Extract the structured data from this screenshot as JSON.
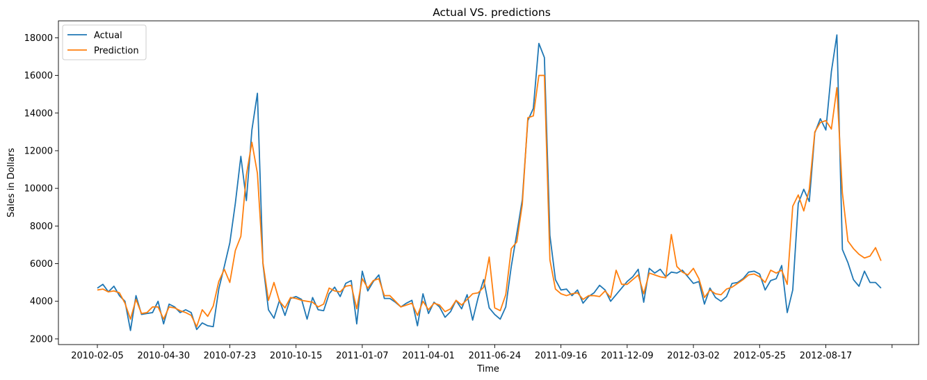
{
  "chart_data": {
    "type": "line",
    "title": "Actual VS. predictions",
    "xlabel": "Time",
    "ylabel": "Sales in Dollars",
    "ylim": [
      1700,
      18900
    ],
    "yticks": [
      2000,
      4000,
      6000,
      8000,
      10000,
      12000,
      14000,
      16000,
      18000
    ],
    "xtick_labels": [
      "2010-02-05",
      "2010-04-30",
      "2010-07-23",
      "2010-10-15",
      "2011-01-07",
      "2011-04-01",
      "2011-06-24",
      "2011-09-16",
      "2011-12-09",
      "2012-03-02",
      "2012-05-25",
      "2012-08-17",
      ""
    ],
    "grid": false,
    "legend": "top-left",
    "series": [
      {
        "name": "Actual",
        "color": "#1f77b4",
        "values": [
          4700,
          4900,
          4500,
          4800,
          4300,
          4000,
          2450,
          4300,
          3300,
          3350,
          3400,
          4000,
          2800,
          3850,
          3700,
          3400,
          3550,
          3400,
          2500,
          2850,
          2700,
          2650,
          4650,
          5850,
          7100,
          9200,
          11700,
          9350,
          13100,
          15050,
          6000,
          3550,
          3100,
          4050,
          3250,
          4150,
          4250,
          4100,
          3050,
          4200,
          3550,
          3500,
          4400,
          4750,
          4250,
          4950,
          5100,
          2800,
          5600,
          4550,
          5050,
          5400,
          4150,
          4150,
          3950,
          3700,
          3900,
          4050,
          2700,
          4400,
          3350,
          3950,
          3700,
          3150,
          3450,
          4050,
          3600,
          4350,
          3000,
          4200,
          5150,
          3650,
          3300,
          3050,
          3700,
          5850,
          7600,
          9400,
          13600,
          14250,
          17700,
          16950,
          7500,
          5150,
          4600,
          4650,
          4300,
          4600,
          3900,
          4250,
          4450,
          4850,
          4600,
          4000,
          4350,
          4700,
          5050,
          5300,
          5700,
          3950,
          5750,
          5500,
          5700,
          5300,
          5550,
          5500,
          5650,
          5300,
          4950,
          5050,
          3850,
          4700,
          4200,
          4000,
          4250,
          4950,
          5000,
          5200,
          5550,
          5600,
          5450,
          4600,
          5100,
          5200,
          5900,
          3400,
          4600,
          9200,
          9950,
          9300,
          12950,
          13700,
          13100,
          16200,
          18150,
          6750,
          6050,
          5150,
          4800,
          5600,
          5000,
          5000,
          4700
        ]
      },
      {
        "name": "Prediction",
        "color": "#ff7f0e",
        "values": [
          4600,
          4650,
          4500,
          4550,
          4450,
          3900,
          3050,
          4100,
          3350,
          3400,
          3700,
          3700,
          3050,
          3700,
          3650,
          3500,
          3400,
          3250,
          2650,
          3550,
          3200,
          3750,
          5050,
          5700,
          5000,
          6700,
          7450,
          10700,
          12450,
          10800,
          6050,
          4050,
          5000,
          4000,
          3650,
          4200,
          4150,
          4050,
          4000,
          3950,
          3700,
          3850,
          4700,
          4550,
          4500,
          4800,
          4850,
          3600,
          5200,
          4700,
          5100,
          5200,
          4300,
          4300,
          4000,
          3700,
          3800,
          3900,
          3250,
          4000,
          3550,
          3900,
          3800,
          3450,
          3600,
          4050,
          3800,
          4100,
          4400,
          4450,
          4750,
          6350,
          3650,
          3500,
          4350,
          6800,
          7150,
          9150,
          13750,
          13850,
          16000,
          16000,
          6200,
          4650,
          4400,
          4300,
          4400,
          4450,
          4100,
          4300,
          4300,
          4250,
          4550,
          4200,
          5650,
          4900,
          4900,
          5150,
          5400,
          4400,
          5500,
          5400,
          5300,
          5250,
          7550,
          5850,
          5550,
          5400,
          5750,
          5200,
          4200,
          4600,
          4400,
          4350,
          4650,
          4750,
          4950,
          5150,
          5400,
          5450,
          5300,
          5000,
          5650,
          5500,
          5650,
          4900,
          9050,
          9650,
          8800,
          9950,
          13000,
          13500,
          13600,
          13150,
          15350,
          9750,
          7200,
          6800,
          6500,
          6300,
          6400,
          6850,
          6150
        ]
      }
    ]
  }
}
